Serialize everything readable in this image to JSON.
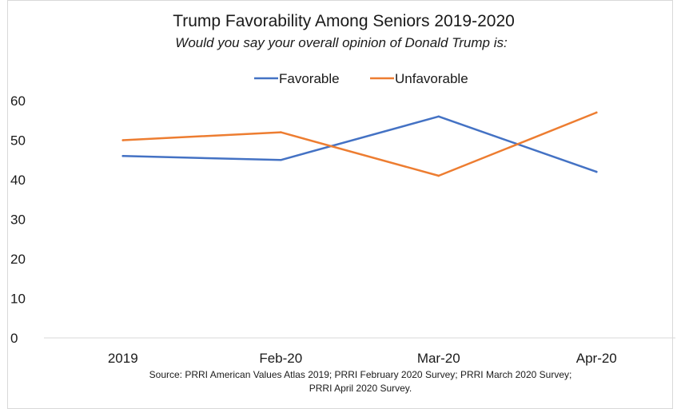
{
  "chart_data": {
    "type": "line",
    "title": "Trump Favorability Among Seniors 2019-2020",
    "subtitle": "Would you say your overall opinion of Donald Trump is:",
    "categories": [
      "2019",
      "Feb-20",
      "Mar-20",
      "Apr-20"
    ],
    "series": [
      {
        "name": "Favorable",
        "values": [
          46,
          45,
          56,
          42
        ],
        "color": "#4472C4"
      },
      {
        "name": "Unfavorable",
        "values": [
          50,
          52,
          41,
          57
        ],
        "color": "#ED7D31"
      }
    ],
    "y_ticks": [
      "0",
      "10",
      "20",
      "30",
      "40",
      "50",
      "60"
    ],
    "ylim": [
      0,
      60
    ],
    "grid": false,
    "legend_position": "top",
    "source_lines": [
      "Source: PRRI American Values Atlas 2019; PRRI February 2020 Survey; PRRI March 2020 Survey;",
      "PRRI April 2020 Survey."
    ]
  }
}
